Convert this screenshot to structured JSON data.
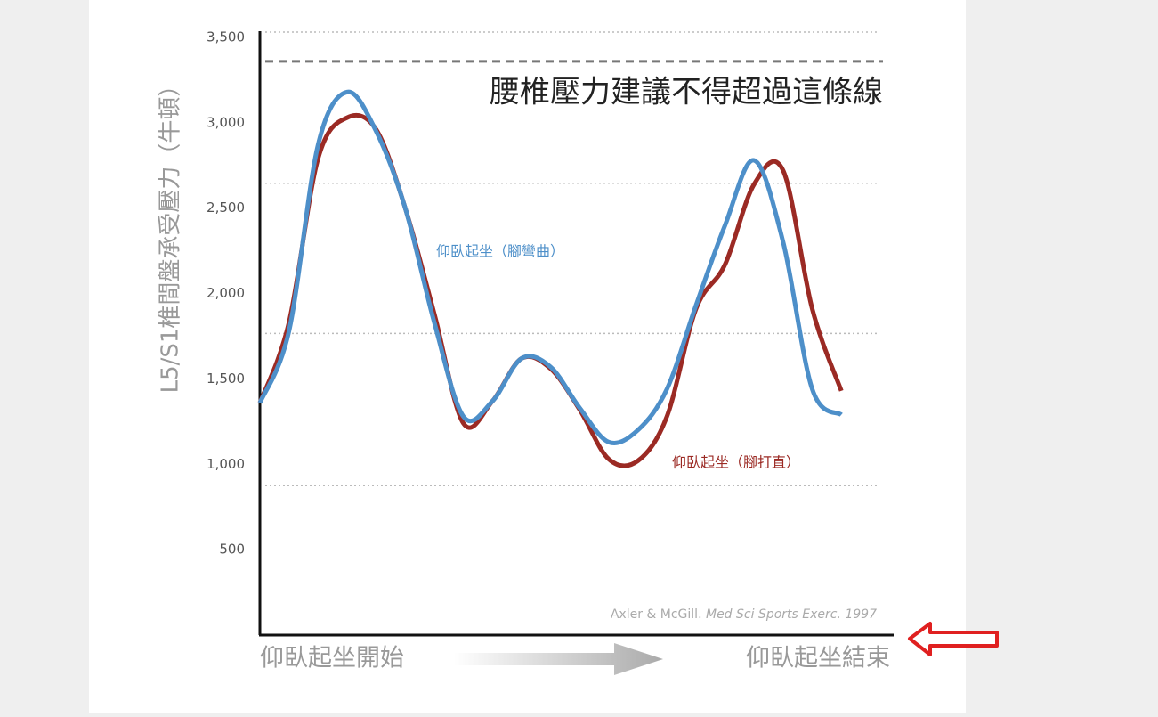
{
  "chart_data": {
    "type": "line",
    "y_label": "L5/S1椎間盤承受壓力（牛頓）",
    "x_start_label": "仰臥起坐開始",
    "x_end_label": "仰臥起坐結束",
    "source": "Axler & McGill.",
    "source_journal": "Med Sci Sports Exerc. 1997",
    "limit": {
      "value": 3360,
      "label": "腰椎壓力建議不得超過這條線",
      "color": "#777777"
    },
    "dotted_lines": [
      875,
      1766,
      2646,
      3531
    ],
    "x": [
      0,
      5,
      10,
      15,
      20,
      25,
      30,
      35,
      40,
      45,
      50,
      55,
      60,
      65,
      70,
      75,
      80,
      85,
      90,
      95,
      100
    ],
    "xlim": [
      0,
      109
    ],
    "ylim": [
      0,
      3500
    ],
    "yticks": [
      {
        "value": 500,
        "label": "500"
      },
      {
        "value": 1000,
        "label": "1,000"
      },
      {
        "value": 1500,
        "label": "1,500"
      },
      {
        "value": 2000,
        "label": "2,000"
      },
      {
        "value": 2500,
        "label": "2,500"
      },
      {
        "value": 3000,
        "label": "3,000"
      },
      {
        "value": 3500,
        "label": "3,500"
      }
    ],
    "series": [
      {
        "name": "仰臥起坐（腳打直）",
        "color": "#9b2a24",
        "values": [
          1360,
          1830,
          2790,
          3030,
          2960,
          2500,
          1880,
          1240,
          1370,
          1620,
          1560,
          1320,
          1030,
          1020,
          1280,
          1910,
          2170,
          2640,
          2720,
          1910,
          1430
        ]
      },
      {
        "name": "仰臥起坐（腳彎曲）",
        "color": "#4d8fc9",
        "values": [
          1360,
          1780,
          2870,
          3180,
          2950,
          2500,
          1830,
          1280,
          1370,
          1620,
          1570,
          1330,
          1130,
          1200,
          1440,
          1930,
          2400,
          2780,
          2300,
          1440,
          1290
        ]
      }
    ]
  }
}
